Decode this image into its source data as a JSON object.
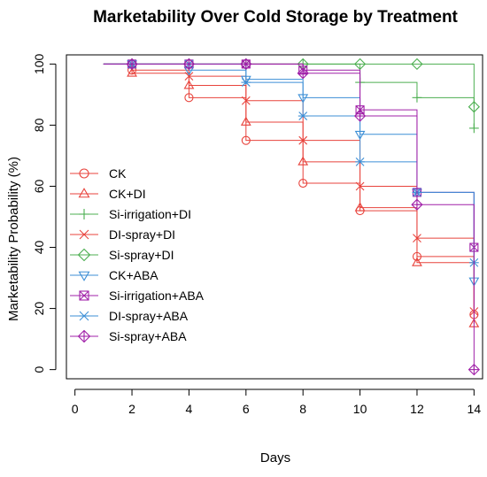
{
  "chart_data": {
    "type": "line",
    "title": "Marketability Over Cold Storage by Treatment",
    "xlabel": "Days",
    "ylabel": "Marketability Probability (%)",
    "xlim": [
      -0.3,
      14.3
    ],
    "ylim": [
      -3,
      103
    ],
    "xticks": [
      0,
      2,
      4,
      6,
      8,
      10,
      12,
      14
    ],
    "yticks": [
      0,
      20,
      40,
      60,
      80,
      100
    ],
    "grid": false,
    "legend_position": "bottom-left",
    "step_chart": true,
    "series": [
      {
        "name": "CK",
        "color": "#e8433c",
        "marker": "circle",
        "x": [
          1,
          2,
          4,
          6,
          8,
          10,
          12,
          14
        ],
        "y": [
          100,
          98,
          89,
          75,
          61,
          52,
          37,
          18
        ]
      },
      {
        "name": "CK+DI",
        "color": "#e8433c",
        "marker": "triangle-up",
        "x": [
          1,
          2,
          4,
          6,
          8,
          10,
          12,
          14
        ],
        "y": [
          100,
          97,
          93,
          81,
          68,
          53,
          35,
          15
        ]
      },
      {
        "name": "Si-irrigation+DI",
        "color": "#4caf50",
        "marker": "plus",
        "x": [
          1,
          2,
          4,
          6,
          8,
          10,
          12,
          14
        ],
        "y": [
          100,
          100,
          100,
          100,
          100,
          94,
          89,
          79
        ]
      },
      {
        "name": "DI-spray+DI",
        "color": "#e8433c",
        "marker": "x",
        "x": [
          1,
          2,
          4,
          6,
          8,
          10,
          12,
          14
        ],
        "y": [
          100,
          100,
          96,
          88,
          75,
          60,
          43,
          19
        ]
      },
      {
        "name": "Si-spray+DI",
        "color": "#4caf50",
        "marker": "diamond",
        "x": [
          1,
          2,
          4,
          6,
          8,
          10,
          12,
          14
        ],
        "y": [
          100,
          100,
          100,
          100,
          100,
          100,
          100,
          86
        ]
      },
      {
        "name": "CK+ABA",
        "color": "#3d8fd6",
        "marker": "triangle-down",
        "x": [
          1,
          2,
          4,
          6,
          8,
          10,
          12,
          14
        ],
        "y": [
          100,
          100,
          98,
          95,
          89,
          77,
          58,
          29
        ]
      },
      {
        "name": "Si-irrigation+ABA",
        "color": "#a020a8",
        "marker": "square-x",
        "x": [
          1,
          2,
          4,
          6,
          8,
          10,
          12,
          14
        ],
        "y": [
          100,
          100,
          100,
          100,
          98,
          85,
          58,
          40
        ]
      },
      {
        "name": "DI-spray+ABA",
        "color": "#3d8fd6",
        "marker": "asterisk",
        "x": [
          1,
          2,
          4,
          6,
          8,
          10,
          12,
          14
        ],
        "y": [
          100,
          100,
          100,
          94,
          83,
          68,
          58,
          35
        ]
      },
      {
        "name": "Si-spray+ABA",
        "color": "#a020a8",
        "marker": "diamond-plus",
        "x": [
          1,
          2,
          4,
          6,
          8,
          10,
          12,
          14
        ],
        "y": [
          100,
          100,
          100,
          100,
          97,
          83,
          54,
          0
        ]
      }
    ]
  }
}
